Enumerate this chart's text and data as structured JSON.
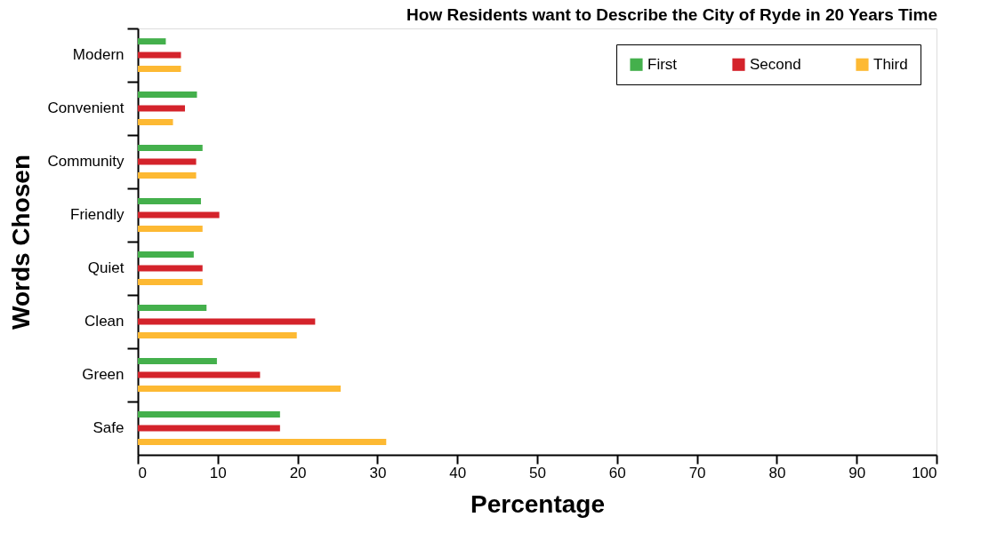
{
  "chart_data": {
    "type": "bar",
    "orientation": "horizontal",
    "title": "How Residents want to Describe the City of Ryde in 20 Years Time",
    "xlabel": "Percentage",
    "ylabel": "Words Chosen",
    "categories": [
      "Modern",
      "Convenient",
      "Community",
      "Friendly",
      "Quiet",
      "Clean",
      "Green",
      "Safe"
    ],
    "series": [
      {
        "name": "First",
        "color": "#44b04c",
        "values": [
          3.5,
          7.4,
          8.1,
          7.9,
          7.0,
          8.6,
          9.9,
          17.8
        ]
      },
      {
        "name": "Second",
        "color": "#d4232b",
        "values": [
          5.4,
          5.9,
          7.3,
          10.2,
          8.1,
          22.2,
          15.3,
          17.8
        ]
      },
      {
        "name": "Third",
        "color": "#fdb933",
        "values": [
          5.4,
          4.4,
          7.3,
          8.1,
          8.1,
          19.9,
          25.4,
          31.1
        ]
      }
    ],
    "xlim": [
      0,
      100
    ],
    "xticks": [
      0,
      10,
      20,
      30,
      40,
      50,
      60,
      70,
      80,
      90,
      100
    ],
    "grid": false,
    "legend": "top right"
  }
}
